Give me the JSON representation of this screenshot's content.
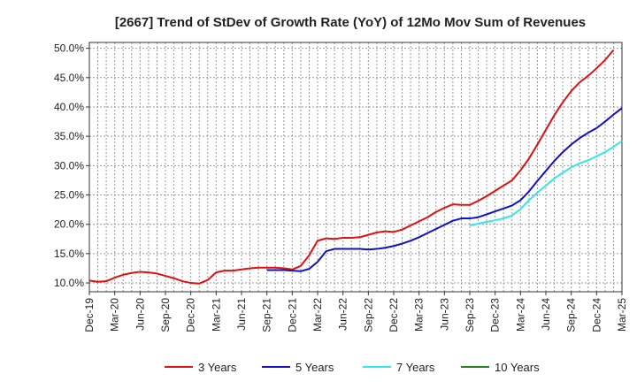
{
  "chart_data": {
    "type": "line",
    "title": "[2667]  Trend of StDev of Growth Rate (YoY) of 12Mo Mov Sum of Revenues",
    "xlabel": "",
    "ylabel": "",
    "x_ticks": [
      "Dec-19",
      "Mar-20",
      "Jun-20",
      "Sep-20",
      "Dec-20",
      "Mar-21",
      "Jun-21",
      "Sep-21",
      "Dec-21",
      "Mar-22",
      "Jun-22",
      "Sep-22",
      "Dec-22",
      "Mar-23",
      "Jun-23",
      "Sep-23",
      "Dec-23",
      "Mar-24",
      "Jun-24",
      "Sep-24",
      "Dec-24",
      "Mar-25"
    ],
    "y_ticks": [
      "10.0%",
      "15.0%",
      "20.0%",
      "25.0%",
      "30.0%",
      "35.0%",
      "40.0%",
      "45.0%",
      "50.0%"
    ],
    "ylim": [
      8.5,
      51.0
    ],
    "grid": true,
    "legend_position": "bottom",
    "series": [
      {
        "name": "3 Years",
        "color": "#e01010",
        "start_index": 0,
        "values": [
          10.4,
          10.2,
          10.3,
          10.9,
          11.4,
          11.7,
          11.9,
          11.8,
          11.6,
          11.2,
          10.8,
          10.3,
          10.0,
          9.9,
          10.5,
          11.8,
          12.1,
          12.1,
          12.3,
          12.5,
          12.6,
          12.6,
          12.6,
          12.5,
          12.3,
          12.9,
          14.7,
          17.2,
          17.6,
          17.5,
          17.7,
          17.7,
          17.8,
          18.2,
          18.6,
          18.8,
          18.7,
          19.1,
          19.8,
          20.5,
          21.2,
          22.1,
          22.8,
          23.4,
          23.3,
          23.3,
          24.0,
          24.8,
          25.7,
          26.6,
          27.5,
          29.2,
          31.2,
          33.6,
          36.1,
          38.6,
          40.8,
          42.7,
          44.2,
          45.3,
          46.6,
          48.0,
          49.7
        ]
      },
      {
        "name": "5 Years",
        "color": "#1010cc",
        "start_index": 21,
        "values": [
          12.2,
          12.2,
          12.2,
          12.1,
          12.0,
          12.4,
          13.6,
          15.4,
          15.8,
          15.8,
          15.8,
          15.8,
          15.7,
          15.8,
          16.0,
          16.3,
          16.7,
          17.2,
          17.8,
          18.5,
          19.2,
          19.9,
          20.6,
          21.0,
          21.0,
          21.2,
          21.7,
          22.2,
          22.7,
          23.2,
          24.1,
          25.6,
          27.4,
          29.1,
          30.8,
          32.3,
          33.6,
          34.7,
          35.6,
          36.4,
          37.5,
          38.7,
          39.8
        ]
      },
      {
        "name": "7 Years",
        "color": "#30e8e8",
        "start_index": 45,
        "values": [
          19.8,
          20.1,
          20.4,
          20.7,
          21.0,
          21.5,
          22.6,
          24.1,
          25.4,
          26.6,
          27.8,
          28.8,
          29.7,
          30.4,
          30.9,
          31.6,
          32.3,
          33.2,
          34.2
        ]
      },
      {
        "name": "10 Years",
        "color": "#208020",
        "start_index": 0,
        "values": []
      }
    ]
  }
}
